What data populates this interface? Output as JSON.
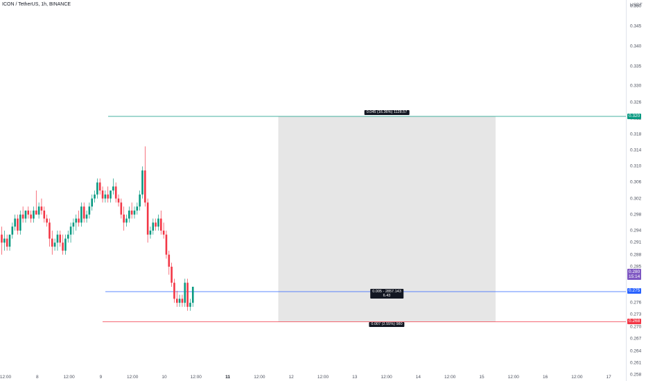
{
  "header": {
    "symbol_title": "ICON / TetherUS, 1h, BINANCE"
  },
  "price_scale": {
    "unit": "USDT",
    "ticks": [
      "0.350",
      "0.345",
      "0.340",
      "0.335",
      "0.330",
      "0.326",
      "0.322",
      "0.318",
      "0.314",
      "0.310",
      "0.306",
      "0.302",
      "0.298",
      "0.294",
      "0.291",
      "0.288",
      "0.285",
      "0.282",
      "0.276",
      "0.273",
      "0.270",
      "0.267",
      "0.264",
      "0.261",
      "0.258"
    ]
  },
  "time_scale": {
    "labels": [
      "12:00",
      "8",
      "12:00",
      "9",
      "12:00",
      "10",
      "12:00",
      "11",
      "12:00",
      "12",
      "12:00",
      "13",
      "12:00",
      "14",
      "12:00",
      "15",
      "12:00",
      "16",
      "12:00",
      "17"
    ],
    "bold_index": 7
  },
  "position_tool": {
    "type": "long",
    "target_label": "0.045 (16.36%) 1128.57",
    "entry_label_line1": "0.005 - 2857.143",
    "entry_label_line2": "6.43",
    "stop_label": "0.007 (2.55%) 980",
    "target_price": "0.320",
    "entry_price": "0.275",
    "stop_price": "0.268",
    "last_price": "0.280",
    "countdown": "15:14"
  },
  "colors": {
    "up": "#089981",
    "down": "#f23645",
    "entry_line": "#2962ff",
    "target_line": "#089981",
    "zone_fill": "#e6e6e6",
    "last_price_badge": "#7e57c2"
  },
  "chart_data": {
    "type": "candlestick",
    "interval": "1h",
    "series": [
      {
        "o": 0.293,
        "h": 0.295,
        "l": 0.288,
        "c": 0.291
      },
      {
        "o": 0.291,
        "h": 0.294,
        "l": 0.289,
        "c": 0.292
      },
      {
        "o": 0.292,
        "h": 0.293,
        "l": 0.289,
        "c": 0.29
      },
      {
        "o": 0.29,
        "h": 0.293,
        "l": 0.289,
        "c": 0.293
      },
      {
        "o": 0.293,
        "h": 0.296,
        "l": 0.292,
        "c": 0.295
      },
      {
        "o": 0.295,
        "h": 0.298,
        "l": 0.294,
        "c": 0.297
      },
      {
        "o": 0.297,
        "h": 0.298,
        "l": 0.293,
        "c": 0.294
      },
      {
        "o": 0.294,
        "h": 0.299,
        "l": 0.293,
        "c": 0.298
      },
      {
        "o": 0.298,
        "h": 0.3,
        "l": 0.296,
        "c": 0.297
      },
      {
        "o": 0.297,
        "h": 0.299,
        "l": 0.296,
        "c": 0.299
      },
      {
        "o": 0.299,
        "h": 0.3,
        "l": 0.297,
        "c": 0.298
      },
      {
        "o": 0.298,
        "h": 0.299,
        "l": 0.296,
        "c": 0.297
      },
      {
        "o": 0.297,
        "h": 0.3,
        "l": 0.296,
        "c": 0.299
      },
      {
        "o": 0.299,
        "h": 0.304,
        "l": 0.298,
        "c": 0.298
      },
      {
        "o": 0.298,
        "h": 0.301,
        "l": 0.297,
        "c": 0.3
      },
      {
        "o": 0.3,
        "h": 0.302,
        "l": 0.298,
        "c": 0.299
      },
      {
        "o": 0.299,
        "h": 0.3,
        "l": 0.296,
        "c": 0.297
      },
      {
        "o": 0.297,
        "h": 0.298,
        "l": 0.295,
        "c": 0.296
      },
      {
        "o": 0.296,
        "h": 0.297,
        "l": 0.29,
        "c": 0.292
      },
      {
        "o": 0.292,
        "h": 0.294,
        "l": 0.288,
        "c": 0.29
      },
      {
        "o": 0.29,
        "h": 0.292,
        "l": 0.289,
        "c": 0.291
      },
      {
        "o": 0.291,
        "h": 0.294,
        "l": 0.289,
        "c": 0.293
      },
      {
        "o": 0.293,
        "h": 0.294,
        "l": 0.29,
        "c": 0.291
      },
      {
        "o": 0.291,
        "h": 0.293,
        "l": 0.288,
        "c": 0.289
      },
      {
        "o": 0.289,
        "h": 0.293,
        "l": 0.288,
        "c": 0.292
      },
      {
        "o": 0.292,
        "h": 0.294,
        "l": 0.291,
        "c": 0.293
      },
      {
        "o": 0.293,
        "h": 0.296,
        "l": 0.291,
        "c": 0.295
      },
      {
        "o": 0.295,
        "h": 0.297,
        "l": 0.293,
        "c": 0.296
      },
      {
        "o": 0.296,
        "h": 0.298,
        "l": 0.294,
        "c": 0.297
      },
      {
        "o": 0.297,
        "h": 0.299,
        "l": 0.295,
        "c": 0.296
      },
      {
        "o": 0.296,
        "h": 0.301,
        "l": 0.295,
        "c": 0.3
      },
      {
        "o": 0.3,
        "h": 0.301,
        "l": 0.296,
        "c": 0.297
      },
      {
        "o": 0.297,
        "h": 0.299,
        "l": 0.296,
        "c": 0.298
      },
      {
        "o": 0.298,
        "h": 0.301,
        "l": 0.297,
        "c": 0.3
      },
      {
        "o": 0.3,
        "h": 0.303,
        "l": 0.299,
        "c": 0.302
      },
      {
        "o": 0.302,
        "h": 0.304,
        "l": 0.301,
        "c": 0.303
      },
      {
        "o": 0.303,
        "h": 0.307,
        "l": 0.302,
        "c": 0.306
      },
      {
        "o": 0.306,
        "h": 0.307,
        "l": 0.303,
        "c": 0.304
      },
      {
        "o": 0.304,
        "h": 0.305,
        "l": 0.301,
        "c": 0.302
      },
      {
        "o": 0.302,
        "h": 0.304,
        "l": 0.301,
        "c": 0.303
      },
      {
        "o": 0.303,
        "h": 0.305,
        "l": 0.301,
        "c": 0.302
      },
      {
        "o": 0.302,
        "h": 0.304,
        "l": 0.301,
        "c": 0.304
      },
      {
        "o": 0.304,
        "h": 0.307,
        "l": 0.303,
        "c": 0.305
      },
      {
        "o": 0.305,
        "h": 0.306,
        "l": 0.301,
        "c": 0.302
      },
      {
        "o": 0.302,
        "h": 0.303,
        "l": 0.3,
        "c": 0.301
      },
      {
        "o": 0.301,
        "h": 0.302,
        "l": 0.297,
        "c": 0.298
      },
      {
        "o": 0.298,
        "h": 0.3,
        "l": 0.294,
        "c": 0.296
      },
      {
        "o": 0.296,
        "h": 0.298,
        "l": 0.295,
        "c": 0.297
      },
      {
        "o": 0.297,
        "h": 0.3,
        "l": 0.296,
        "c": 0.299
      },
      {
        "o": 0.299,
        "h": 0.301,
        "l": 0.297,
        "c": 0.298
      },
      {
        "o": 0.298,
        "h": 0.3,
        "l": 0.297,
        "c": 0.299
      },
      {
        "o": 0.299,
        "h": 0.301,
        "l": 0.298,
        "c": 0.3
      },
      {
        "o": 0.3,
        "h": 0.304,
        "l": 0.299,
        "c": 0.303
      },
      {
        "o": 0.303,
        "h": 0.31,
        "l": 0.302,
        "c": 0.309
      },
      {
        "o": 0.309,
        "h": 0.315,
        "l": 0.3,
        "c": 0.301
      },
      {
        "o": 0.301,
        "h": 0.302,
        "l": 0.291,
        "c": 0.293
      },
      {
        "o": 0.293,
        "h": 0.295,
        "l": 0.292,
        "c": 0.294
      },
      {
        "o": 0.294,
        "h": 0.297,
        "l": 0.293,
        "c": 0.296
      },
      {
        "o": 0.296,
        "h": 0.297,
        "l": 0.294,
        "c": 0.295
      },
      {
        "o": 0.295,
        "h": 0.298,
        "l": 0.294,
        "c": 0.297
      },
      {
        "o": 0.297,
        "h": 0.299,
        "l": 0.293,
        "c": 0.294
      },
      {
        "o": 0.294,
        "h": 0.296,
        "l": 0.292,
        "c": 0.293
      },
      {
        "o": 0.293,
        "h": 0.294,
        "l": 0.287,
        "c": 0.288
      },
      {
        "o": 0.288,
        "h": 0.289,
        "l": 0.283,
        "c": 0.285
      },
      {
        "o": 0.285,
        "h": 0.286,
        "l": 0.28,
        "c": 0.281
      },
      {
        "o": 0.281,
        "h": 0.282,
        "l": 0.276,
        "c": 0.277
      },
      {
        "o": 0.277,
        "h": 0.279,
        "l": 0.275,
        "c": 0.276
      },
      {
        "o": 0.276,
        "h": 0.278,
        "l": 0.275,
        "c": 0.277
      },
      {
        "o": 0.277,
        "h": 0.278,
        "l": 0.275,
        "c": 0.276
      },
      {
        "o": 0.276,
        "h": 0.282,
        "l": 0.275,
        "c": 0.281
      },
      {
        "o": 0.281,
        "h": 0.282,
        "l": 0.274,
        "c": 0.275
      },
      {
        "o": 0.275,
        "h": 0.277,
        "l": 0.274,
        "c": 0.276
      },
      {
        "o": 0.276,
        "h": 0.28,
        "l": 0.275,
        "c": 0.28
      }
    ],
    "ylim": [
      0.2565,
      0.3515
    ],
    "grid": false
  }
}
